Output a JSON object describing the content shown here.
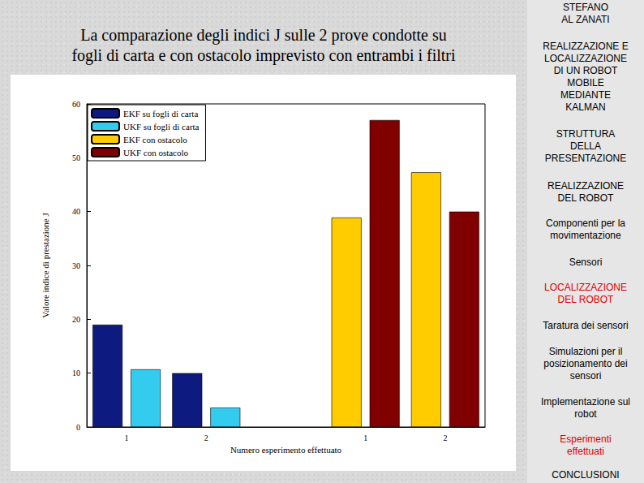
{
  "slide": {
    "title": [
      "La comparazione degli indici J sulle 2 prove condotte su",
      "fogli di carta e con ostacolo imprevisto con entrambi i filtri"
    ],
    "sidebar": [
      {
        "lines": [
          "STEFANO",
          "AL ZANATI"
        ]
      },
      {
        "lines": [
          "REALIZZAZIONE E",
          "LOCALIZZAZIONE",
          "DI UN ROBOT",
          "MOBILE",
          "MEDIANTE",
          "KALMAN"
        ]
      },
      {
        "lines": [
          "STRUTTURA",
          "DELLA",
          "PRESENTAZIONE"
        ]
      },
      {
        "lines": [
          "REALIZZAZIONE",
          "DEL ROBOT"
        ]
      },
      {
        "lines": [
          "Componenti per la",
          "movimentazione"
        ]
      },
      {
        "lines": [
          "Sensori"
        ]
      },
      {
        "lines": [
          "LOCALIZZAZIONE",
          "DEL ROBOT"
        ],
        "color": "#e00000"
      },
      {
        "lines": [
          "Taratura dei sensori"
        ]
      },
      {
        "lines": [
          "Simulazioni per il",
          "posizionamento dei",
          "sensori"
        ]
      },
      {
        "lines": [
          "Implementazione sul",
          "robot"
        ]
      },
      {
        "lines": [
          "Esperimenti",
          "effettuati"
        ],
        "color": "#e00000"
      },
      {
        "lines": [
          "CONCLUSIONI"
        ]
      }
    ]
  },
  "chart_data": {
    "type": "bar",
    "x_label": "Numero esperimento effettuato",
    "y_label": "Valore indice di prestazione J",
    "categories": [
      "1",
      "2",
      null,
      "1",
      "2"
    ],
    "series": [
      {
        "name": "EKF su fogli di carta",
        "color": "#0d1a80",
        "values": [
          19,
          10,
          null,
          null,
          null
        ]
      },
      {
        "name": "UKF su fogli di carta",
        "color": "#33ccee",
        "values": [
          10.7,
          3.6,
          null,
          null,
          null
        ]
      },
      {
        "name": "EKF con ostacolo",
        "color": "#ffcc00",
        "values": [
          null,
          null,
          null,
          38.9,
          47.3
        ]
      },
      {
        "name": "UKF con ostacolo",
        "color": "#800000",
        "values": [
          null,
          null,
          null,
          57,
          40
        ]
      }
    ],
    "ylim": [
      0,
      60
    ],
    "yticks": [
      0,
      10,
      20,
      30,
      40,
      50,
      60
    ],
    "grid": false,
    "legend": "upper left"
  }
}
